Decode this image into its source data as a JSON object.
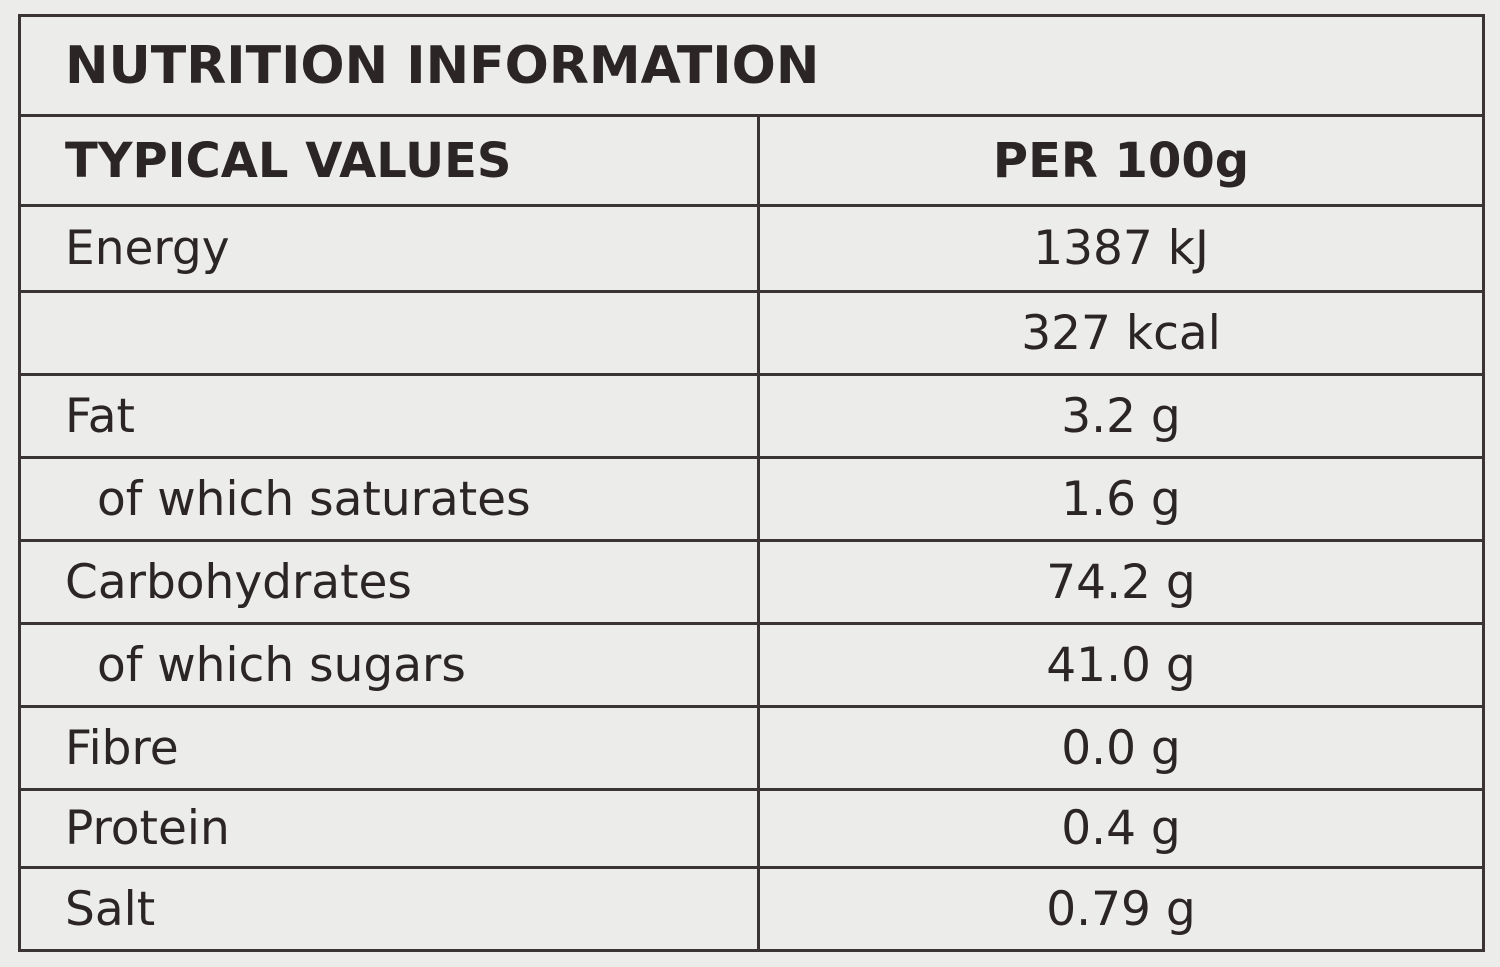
{
  "header": {
    "title": "NUTRITION INFORMATION"
  },
  "table": {
    "columns": [
      "TYPICAL VALUES",
      "PER 100g"
    ],
    "rows": [
      {
        "name": "Energy",
        "value": "1387 kJ"
      },
      {
        "value": "327 kcal"
      },
      {
        "name": "Fat",
        "value": "3.2 g"
      },
      {
        "name": "of which saturates",
        "value": "1.6 g"
      },
      {
        "name": "Carbohydrates",
        "value": "74.2 g"
      },
      {
        "name": "of which sugars",
        "value": "41.0 g"
      },
      {
        "name": "Fibre",
        "value": "0.0 g"
      },
      {
        "name": "Protein",
        "value": "0.4 g"
      },
      {
        "name": "Salt",
        "value": "0.79 g"
      }
    ]
  }
}
